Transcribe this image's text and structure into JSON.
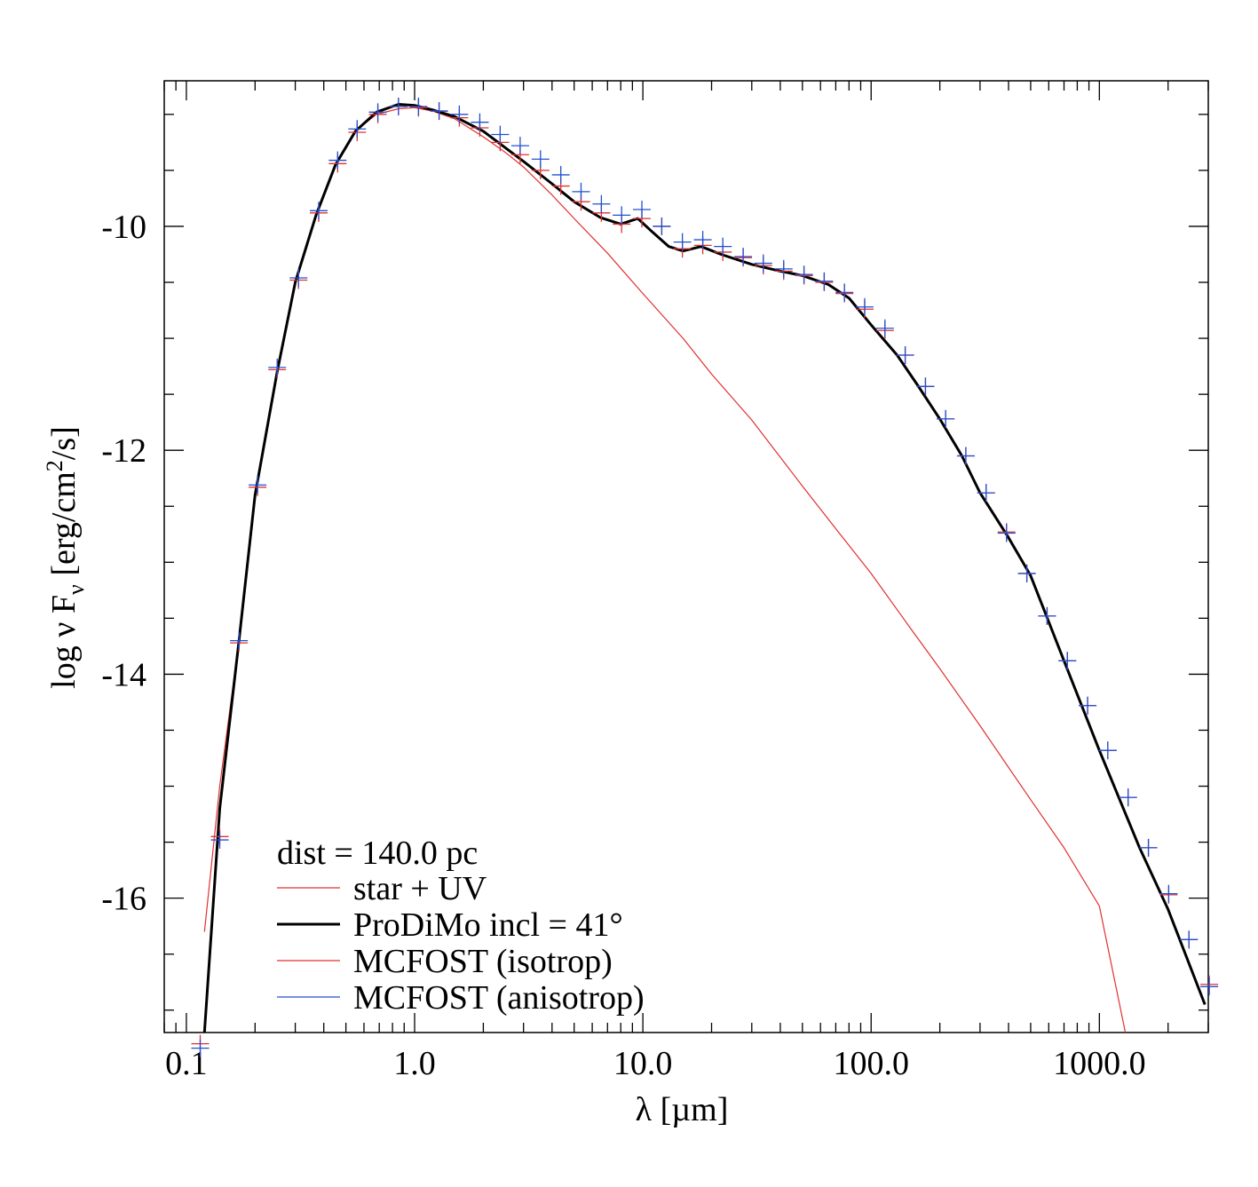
{
  "chart_data": {
    "type": "line",
    "xlabel": "λ [µm]",
    "ylabel_parts": {
      "base": "log ν F",
      "sub": "ν",
      "unit_pre": " [erg/cm",
      "sup": "2",
      "unit_post": "/s]"
    },
    "x_scale": "log",
    "xlim": [
      0.08,
      3000
    ],
    "ylim": [
      -17.2,
      -8.7
    ],
    "x_ticks": [
      {
        "value": 0.1,
        "label": "0.1"
      },
      {
        "value": 1.0,
        "label": "1.0"
      },
      {
        "value": 10.0,
        "label": "10.0"
      },
      {
        "value": 100.0,
        "label": "100.0"
      },
      {
        "value": 1000.0,
        "label": "1000.0"
      }
    ],
    "y_ticks": [
      {
        "value": -10,
        "label": "-10"
      },
      {
        "value": -12,
        "label": "-12"
      },
      {
        "value": -14,
        "label": "-14"
      },
      {
        "value": -16,
        "label": "-16"
      }
    ],
    "grid": false,
    "legend_position": "bottom-left",
    "legend_header": "dist = 140.0 pc",
    "series": [
      {
        "name": "star + UV",
        "color": "#e03030",
        "style": "line",
        "x": [
          0.12,
          0.14,
          0.17,
          0.2,
          0.25,
          0.3,
          0.37,
          0.45,
          0.55,
          0.68,
          0.85,
          1.0,
          1.2,
          1.5,
          2.0,
          2.5,
          3.0,
          4.0,
          5.0,
          7.0,
          10,
          15,
          20,
          30,
          50,
          70,
          100,
          150,
          200,
          300,
          500,
          700,
          1000,
          1300
        ],
        "y": [
          -16.3,
          -15.0,
          -13.7,
          -12.4,
          -11.3,
          -10.5,
          -9.9,
          -9.45,
          -9.15,
          -9.0,
          -8.95,
          -8.94,
          -8.97,
          -9.04,
          -9.2,
          -9.34,
          -9.47,
          -9.72,
          -9.93,
          -10.24,
          -10.6,
          -11.0,
          -11.32,
          -11.73,
          -12.32,
          -12.7,
          -13.1,
          -13.6,
          -13.95,
          -14.46,
          -15.12,
          -15.55,
          -16.07,
          -17.2
        ]
      },
      {
        "name": "ProDiMo incl = 41°",
        "color": "#000000",
        "style": "line",
        "x": [
          0.12,
          0.14,
          0.17,
          0.2,
          0.25,
          0.3,
          0.37,
          0.45,
          0.55,
          0.68,
          0.85,
          1.0,
          1.2,
          1.5,
          2.0,
          3.0,
          4.0,
          5.0,
          6.5,
          8.0,
          9.5,
          11,
          13,
          15,
          18,
          22,
          30,
          40,
          50,
          65,
          80,
          100,
          130,
          160,
          200,
          250,
          300,
          400,
          500,
          700,
          1000,
          1500,
          2000,
          2900
        ],
        "y": [
          -17.2,
          -15.2,
          -13.7,
          -12.4,
          -11.3,
          -10.5,
          -9.9,
          -9.45,
          -9.15,
          -8.98,
          -8.91,
          -8.92,
          -8.96,
          -9.02,
          -9.15,
          -9.42,
          -9.62,
          -9.78,
          -9.92,
          -9.98,
          -9.93,
          -10.05,
          -10.18,
          -10.22,
          -10.18,
          -10.25,
          -10.34,
          -10.4,
          -10.44,
          -10.52,
          -10.64,
          -10.88,
          -11.15,
          -11.42,
          -11.72,
          -12.05,
          -12.38,
          -12.78,
          -13.12,
          -13.88,
          -14.68,
          -15.55,
          -16.1,
          -16.95
        ]
      },
      {
        "name": "MCFOST (isotrop)",
        "color": "#e03030",
        "style": "markers",
        "x": [
          0.115,
          0.14,
          0.17,
          0.205,
          0.25,
          0.31,
          0.38,
          0.46,
          0.56,
          0.69,
          0.85,
          1.04,
          1.28,
          1.57,
          1.93,
          2.37,
          2.9,
          3.56,
          4.37,
          5.36,
          6.58,
          8.07,
          9.9,
          12.1,
          14.9,
          18.3,
          22.4,
          27.5,
          33.7,
          41.4,
          50.8,
          62.3,
          76.4,
          93.7,
          115,
          141,
          173,
          212,
          260,
          319,
          392,
          481,
          590,
          724,
          888,
          1089,
          1336,
          1640,
          2012,
          2468,
          3028
        ],
        "y": [
          -17.3,
          -15.45,
          -13.72,
          -12.33,
          -11.28,
          -10.48,
          -9.88,
          -9.44,
          -9.16,
          -9.0,
          -8.93,
          -8.94,
          -8.97,
          -9.03,
          -9.12,
          -9.25,
          -9.36,
          -9.5,
          -9.64,
          -9.78,
          -9.88,
          -9.98,
          -9.93,
          -10.0,
          -10.2,
          -10.17,
          -10.23,
          -10.28,
          -10.35,
          -10.4,
          -10.44,
          -10.5,
          -10.6,
          -10.74,
          -10.93,
          -11.15,
          -11.43,
          -11.72,
          -12.05,
          -12.38,
          -12.73,
          -13.1,
          -13.48,
          -13.88,
          -14.28,
          -14.68,
          -15.1,
          -15.55,
          -15.97,
          -16.37,
          -16.77
        ]
      },
      {
        "name": "MCFOST (anisotrop)",
        "color": "#2050d0",
        "style": "markers",
        "x": [
          0.115,
          0.14,
          0.17,
          0.205,
          0.25,
          0.31,
          0.38,
          0.46,
          0.56,
          0.69,
          0.85,
          1.04,
          1.28,
          1.57,
          1.93,
          2.37,
          2.9,
          3.56,
          4.37,
          5.36,
          6.58,
          8.07,
          9.9,
          12.1,
          14.9,
          18.3,
          22.4,
          27.5,
          33.7,
          41.4,
          50.8,
          62.3,
          76.4,
          93.7,
          115,
          141,
          173,
          212,
          260,
          319,
          392,
          481,
          590,
          724,
          888,
          1089,
          1336,
          1640,
          2012,
          2468,
          3028
        ],
        "y": [
          -17.34,
          -15.48,
          -13.7,
          -12.31,
          -11.26,
          -10.46,
          -9.86,
          -9.41,
          -9.13,
          -8.98,
          -8.93,
          -8.93,
          -8.97,
          -9.0,
          -9.07,
          -9.18,
          -9.28,
          -9.4,
          -9.54,
          -9.69,
          -9.8,
          -9.9,
          -9.85,
          -10.0,
          -10.14,
          -10.12,
          -10.18,
          -10.27,
          -10.33,
          -10.38,
          -10.43,
          -10.49,
          -10.59,
          -10.72,
          -10.91,
          -11.15,
          -11.43,
          -11.72,
          -12.05,
          -12.38,
          -12.74,
          -13.1,
          -13.48,
          -13.88,
          -14.28,
          -14.68,
          -15.1,
          -15.55,
          -15.96,
          -16.37,
          -16.79
        ]
      }
    ]
  }
}
